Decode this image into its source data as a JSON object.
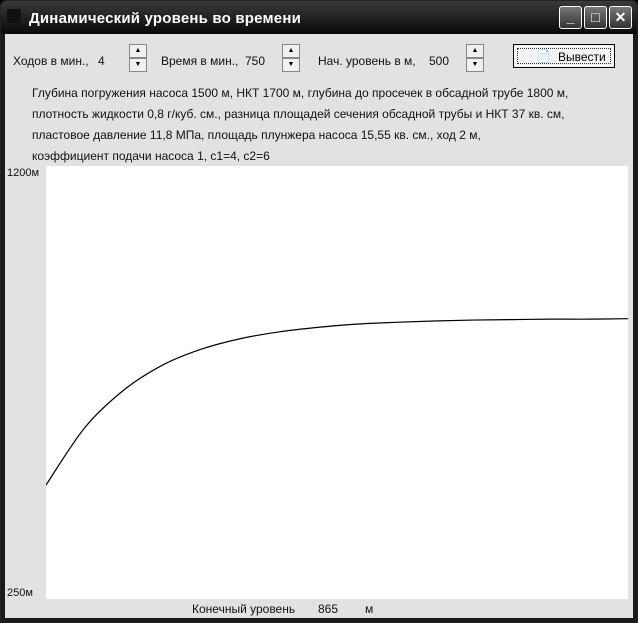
{
  "window": {
    "title": "Динамический уровень во времени",
    "buttons": [
      "minimize",
      "maximize",
      "close"
    ]
  },
  "controls": {
    "strokes_label": "Ходов в мин.,",
    "strokes_value": "4",
    "time_label": "Время в мин.,",
    "time_value": "750",
    "level_label": "Нач. уровень в м,",
    "level_value": "500",
    "output_button": "Вывести"
  },
  "description": [
    "Глубина погружения насоса 1500 м, НКТ 1700 м, глубина до просечек в обсадной трубе 1800 м,",
    "плотность жидкости 0,8 г/куб. см., разница площадей сечения обсадной трубы и НКТ 37 кв. см,",
    "пластовое давление 11,8 МПа, площадь плунжера насоса 15,55 кв. см., ход 2 м,",
    "коэффициент подачи насоса 1, c1=4, c2=6"
  ],
  "result": {
    "label": "Конечный уровень",
    "value": "865",
    "unit": "м"
  },
  "chart_data": {
    "type": "line",
    "ytick_top": "1200м",
    "ytick_bottom": "250м",
    "ylim": [
      250,
      1200
    ],
    "xlim": [
      0,
      750
    ],
    "grid": false,
    "x": [
      0,
      50,
      100,
      150,
      200,
      250,
      300,
      350,
      400,
      450,
      500,
      550,
      600,
      650,
      700,
      750
    ],
    "y": [
      500,
      626,
      708,
      763,
      798,
      821,
      836,
      846,
      853,
      857,
      860,
      862,
      863,
      864,
      864,
      865
    ],
    "color": "#000000"
  }
}
